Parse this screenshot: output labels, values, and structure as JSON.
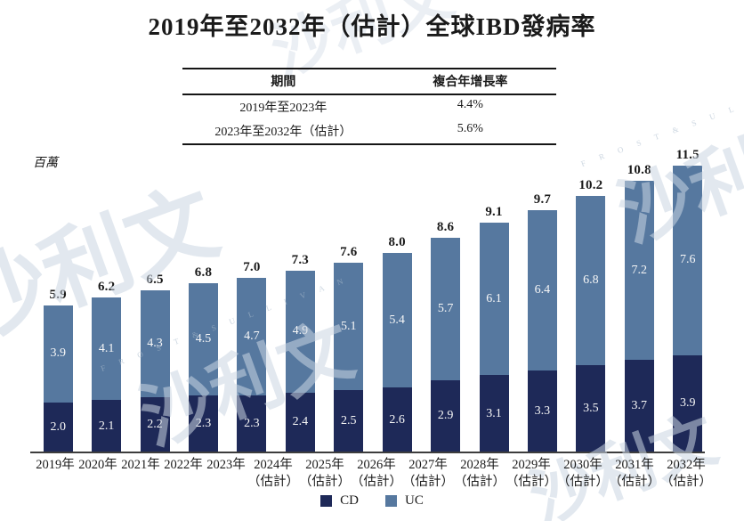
{
  "title": "2019年至2032年（估計）全球IBD發病率",
  "table": {
    "headers": [
      "期間",
      "複合年增長率"
    ],
    "rows": [
      [
        "2019年至2023年",
        "4.4%"
      ],
      [
        "2023年至2032年（估計）",
        "5.6%"
      ]
    ]
  },
  "chart_data": {
    "type": "bar",
    "stacked": true,
    "title": "2019年至2032年（估計）全球IBD發病率",
    "ylabel": "百萬",
    "unit_label": "百萬",
    "legend_position": "bottom",
    "axis_color": "#3d3d3d",
    "categories": [
      {
        "label": "2019年",
        "note": ""
      },
      {
        "label": "2020年",
        "note": ""
      },
      {
        "label": "2021年",
        "note": ""
      },
      {
        "label": "2022年",
        "note": ""
      },
      {
        "label": "2023年",
        "note": ""
      },
      {
        "label": "2024年",
        "note": "（估計）"
      },
      {
        "label": "2025年",
        "note": "（估計）"
      },
      {
        "label": "2026年",
        "note": "（估計）"
      },
      {
        "label": "2027年",
        "note": "（估計）"
      },
      {
        "label": "2028年",
        "note": "（估計）"
      },
      {
        "label": "2029年",
        "note": "（估計）"
      },
      {
        "label": "2030年",
        "note": "（估計）"
      },
      {
        "label": "2031年",
        "note": "（估計）"
      },
      {
        "label": "2032年",
        "note": "（估計）"
      }
    ],
    "series": [
      {
        "name": "CD",
        "color": "#1e2958",
        "values": [
          2.0,
          2.1,
          2.2,
          2.3,
          2.3,
          2.4,
          2.5,
          2.6,
          2.9,
          3.1,
          3.3,
          3.5,
          3.7,
          3.9
        ]
      },
      {
        "name": "UC",
        "color": "#56789f",
        "values": [
          3.9,
          4.1,
          4.3,
          4.5,
          4.7,
          4.9,
          5.1,
          5.4,
          5.7,
          6.1,
          6.4,
          6.8,
          7.2,
          7.6
        ]
      }
    ],
    "totals": [
      5.9,
      6.2,
      6.5,
      6.8,
      7.0,
      7.3,
      7.6,
      8.0,
      8.6,
      9.1,
      9.7,
      10.2,
      10.8,
      11.5
    ]
  },
  "watermark": {
    "cjk": "沙利文",
    "latin": "F R O S T  &  S U L L I V A N"
  }
}
